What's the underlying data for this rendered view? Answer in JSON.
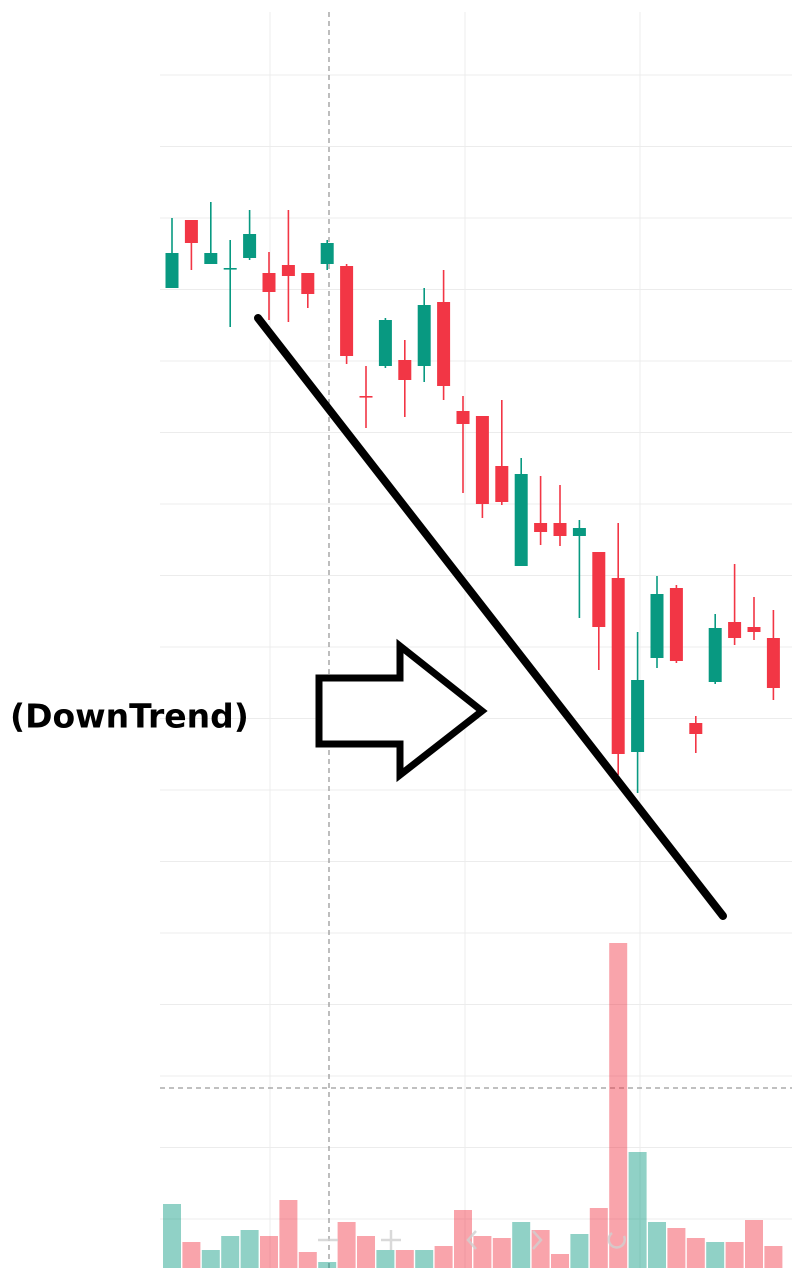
{
  "chart_data": {
    "type": "candlestick",
    "annotation": "(DownTrend)",
    "up_color": "#089981",
    "down_color": "#f23645",
    "ylim": [
      0,
      1000
    ],
    "volume_ylim": [
      0,
      400
    ],
    "open": [
      712,
      780,
      736,
      732,
      742,
      727,
      735,
      727,
      736,
      734,
      604,
      634,
      640,
      634,
      698,
      589,
      584,
      534,
      434,
      477,
      477,
      464,
      448,
      422,
      248,
      342,
      412,
      277,
      318,
      378,
      373,
      362
    ],
    "high": [
      782,
      780,
      798,
      760,
      790,
      748,
      790,
      727,
      760,
      736,
      634,
      682,
      660,
      712,
      730,
      604,
      584,
      600,
      542,
      524,
      515,
      480,
      448,
      477,
      368,
      424,
      415,
      284,
      386,
      436,
      403,
      390
    ],
    "low": [
      712,
      730,
      736,
      673,
      740,
      680,
      678,
      692,
      730,
      636,
      572,
      632,
      583,
      618,
      600,
      507,
      482,
      495,
      434,
      455,
      454,
      382,
      330,
      225,
      207,
      332,
      337,
      247,
      316,
      355,
      360,
      300
    ],
    "close": [
      747,
      757,
      747,
      732,
      766,
      708,
      724,
      706,
      757,
      644,
      603,
      680,
      620,
      695,
      614,
      576,
      496,
      498,
      526,
      468,
      464,
      472,
      373,
      246,
      320,
      406,
      339,
      266,
      372,
      362,
      368,
      312
    ],
    "volume": [
      64,
      26,
      18,
      32,
      38,
      32,
      68,
      16,
      6,
      46,
      32,
      18,
      18,
      18,
      22,
      58,
      32,
      30,
      46,
      38,
      14,
      34,
      60,
      325,
      116,
      46,
      40,
      30,
      26,
      26,
      48,
      22
    ]
  }
}
